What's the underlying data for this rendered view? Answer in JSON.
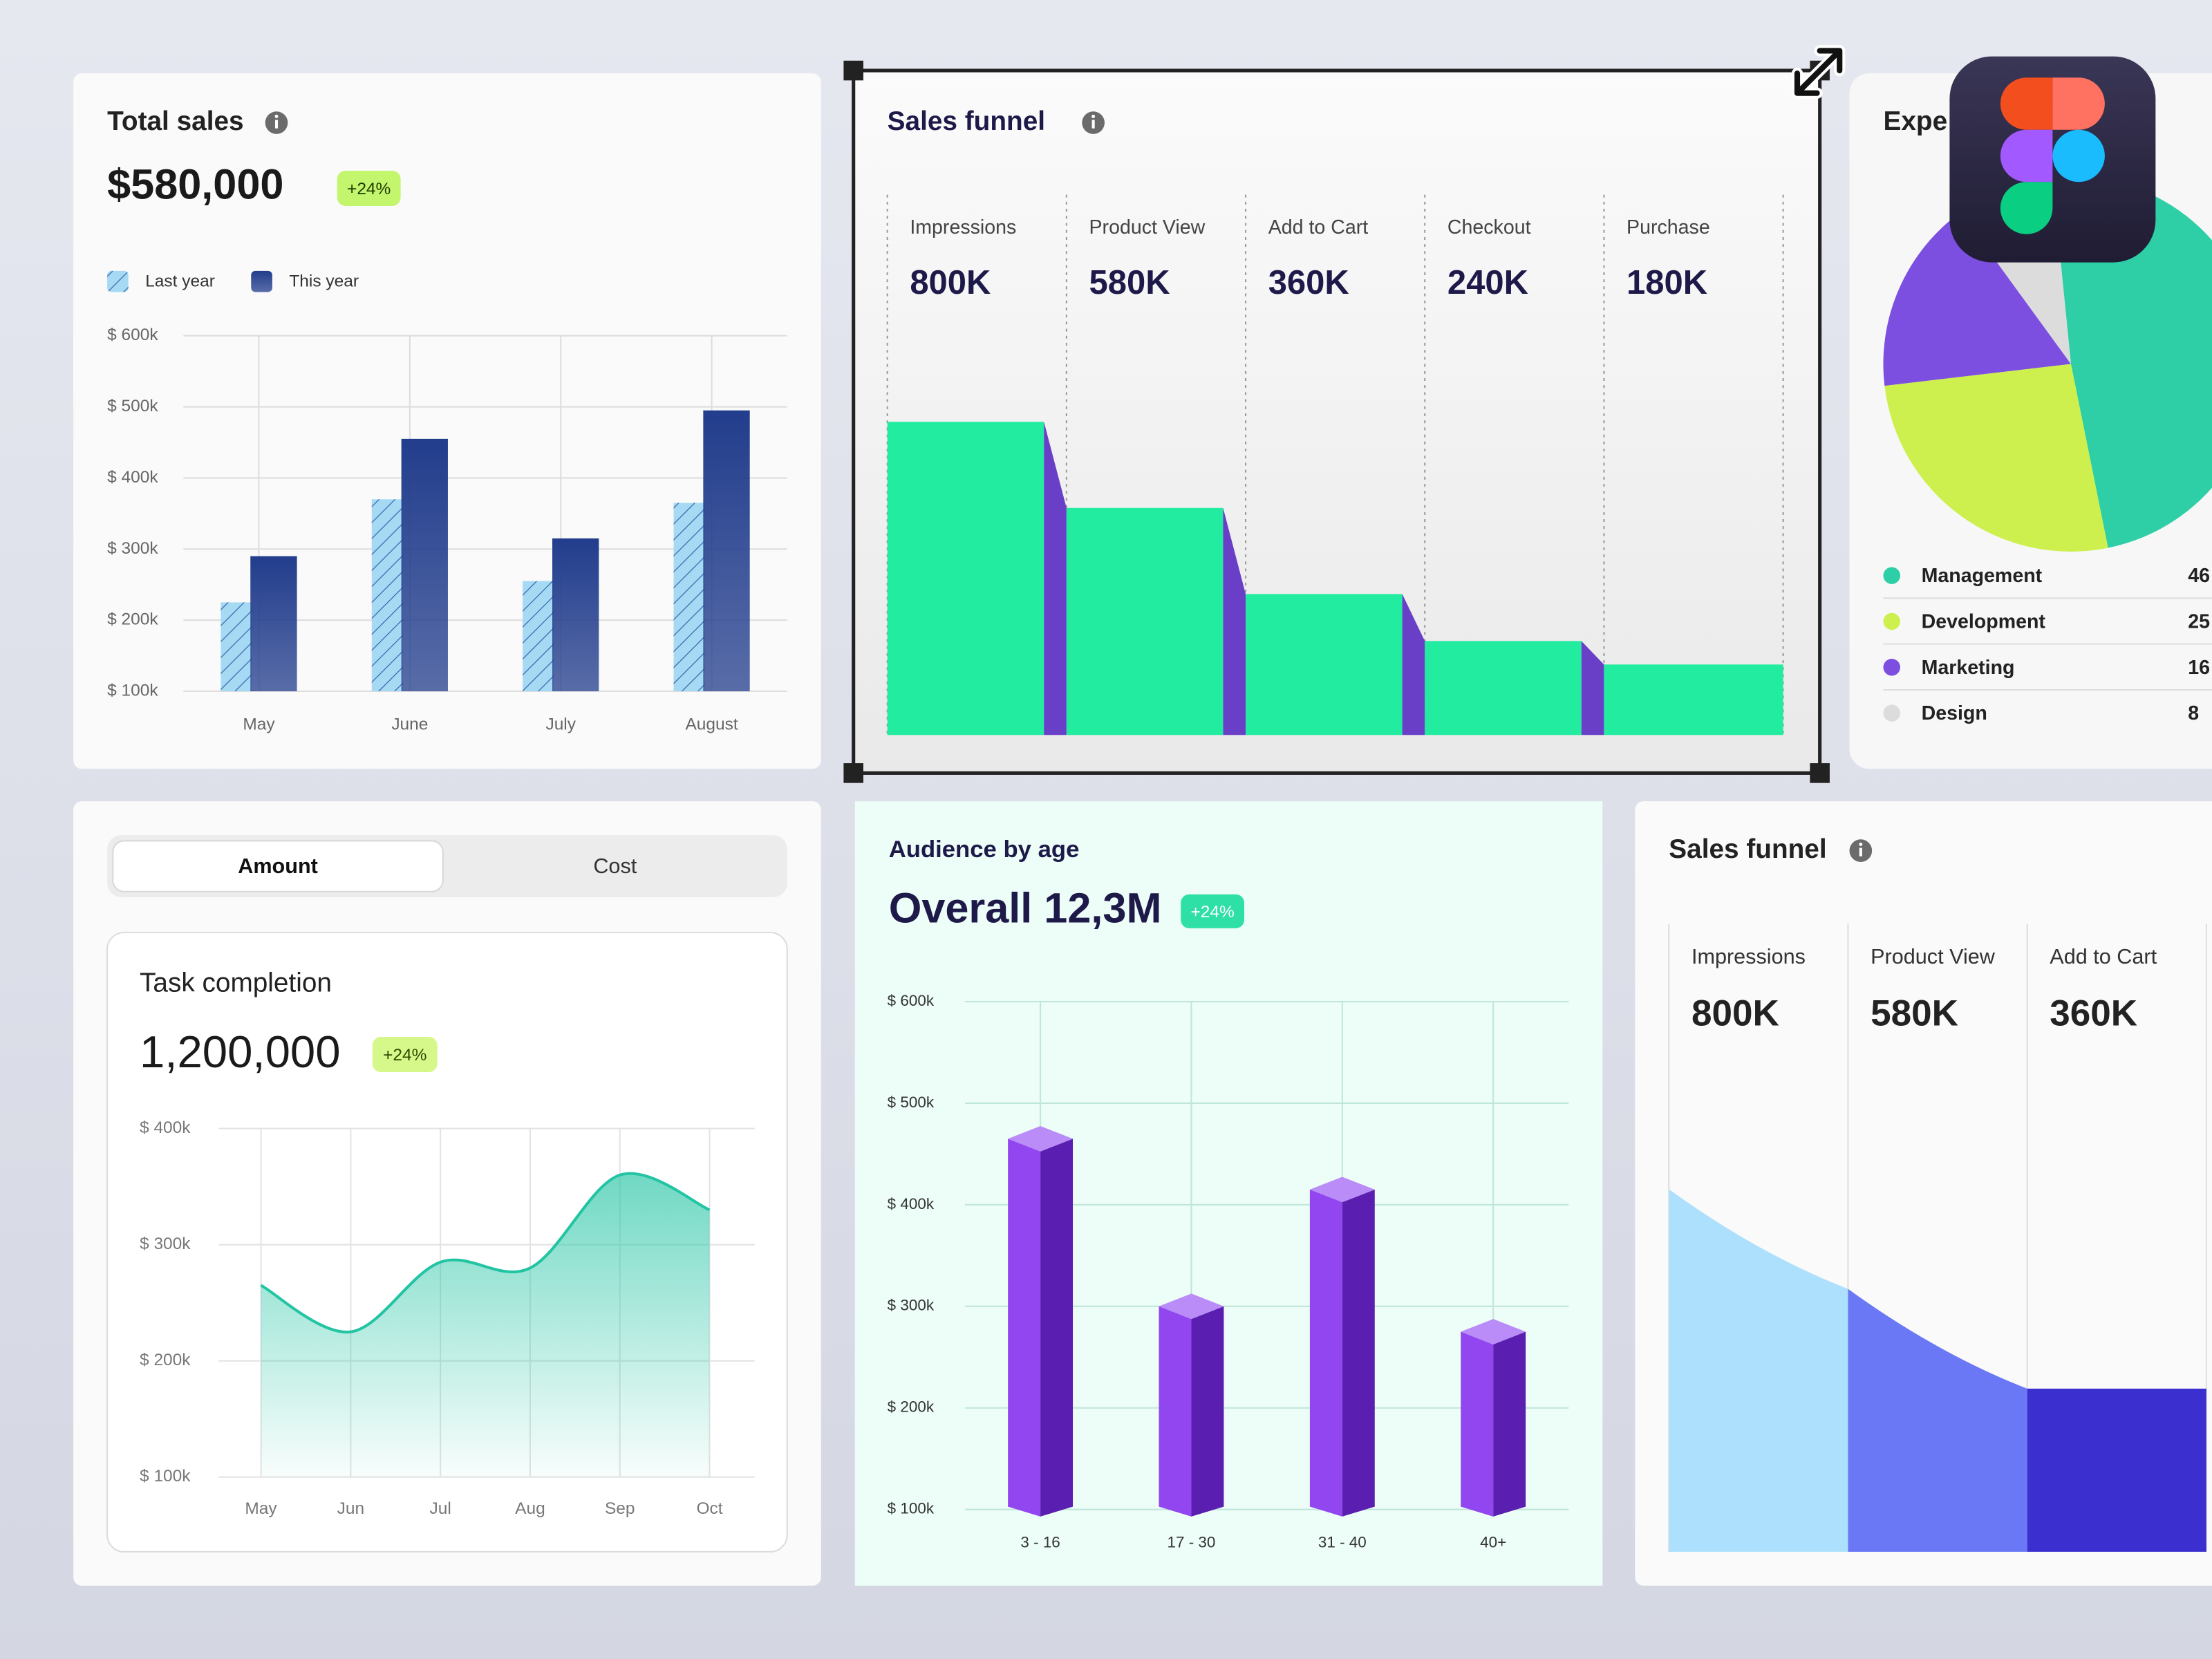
{
  "chart_data": [
    {
      "type": "bar",
      "title": "Total sales",
      "headline": "$580,000",
      "badge": "+24%",
      "categories": [
        "May",
        "June",
        "July",
        "August"
      ],
      "series": [
        {
          "name": "Last year",
          "color": "#a6daf4",
          "values": [
            225,
            370,
            255,
            365
          ]
        },
        {
          "name": "This year",
          "color": "#223d8c",
          "values": [
            290,
            455,
            315,
            495
          ]
        }
      ],
      "ylim": [
        100,
        600
      ],
      "yticks": [
        {
          "value": 100,
          "label": "$ 100k"
        },
        {
          "value": 200,
          "label": "$ 200k"
        },
        {
          "value": 300,
          "label": "$ 300k"
        },
        {
          "value": 400,
          "label": "$ 400k"
        },
        {
          "value": 500,
          "label": "$ 500k"
        },
        {
          "value": 600,
          "label": "$ 600k"
        }
      ],
      "grid": true
    },
    {
      "type": "funnel",
      "title": "Sales funnel",
      "categories": [
        "Impressions",
        "Product View",
        "Add to Cart",
        "Checkout",
        "Purchase"
      ],
      "values": [
        800000,
        580000,
        360000,
        240000,
        180000
      ],
      "value_labels": [
        "800K",
        "580K",
        "360K",
        "240K",
        "180K"
      ],
      "color": "#22eca0",
      "side_color": "#6a3fc8"
    },
    {
      "type": "pie",
      "title": "Expe",
      "categories": [
        "Management",
        "Development",
        "Marketing",
        "Design"
      ],
      "values": [
        46,
        25,
        16,
        8
      ],
      "colors": [
        "#2ecfa6",
        "#cdf04f",
        "#7c4fe0",
        "#dcdcdc"
      ]
    },
    {
      "type": "area",
      "tabs": [
        "Amount",
        "Cost"
      ],
      "title": "Task completion",
      "headline": "1,200,000",
      "badge": "+24%",
      "categories": [
        "May",
        "Jun",
        "Jul",
        "Aug",
        "Sep",
        "Oct"
      ],
      "values": [
        265,
        225,
        285,
        280,
        360,
        330
      ],
      "color": "#22c4a3",
      "ylim": [
        100,
        400
      ],
      "yticks": [
        {
          "value": 100,
          "label": "$ 100k"
        },
        {
          "value": 200,
          "label": "$ 200k"
        },
        {
          "value": 300,
          "label": "$ 300k"
        },
        {
          "value": 400,
          "label": "$ 400k"
        }
      ],
      "grid": true
    },
    {
      "type": "bar3d",
      "title": "Audience by age",
      "headline": "Overall 12,3M",
      "badge": "+24%",
      "categories": [
        "3 - 16",
        "17 - 30",
        "31 - 40",
        "40+"
      ],
      "values": [
        465,
        300,
        415,
        275
      ],
      "color": "#9146f0",
      "side_color": "#5a1fb0",
      "top_color": "#b98cf7",
      "ylim": [
        100,
        600
      ],
      "yticks": [
        {
          "value": 100,
          "label": "$ 100k"
        },
        {
          "value": 200,
          "label": "$ 200k"
        },
        {
          "value": 300,
          "label": "$ 300k"
        },
        {
          "value": 400,
          "label": "$ 400k"
        },
        {
          "value": 500,
          "label": "$ 500k"
        },
        {
          "value": 600,
          "label": "$ 600k"
        }
      ],
      "grid": true
    },
    {
      "type": "funnel_area",
      "title": "Sales funnel",
      "categories": [
        "Impressions",
        "Product View",
        "Add to Cart"
      ],
      "values": [
        800000,
        580000,
        360000
      ],
      "value_labels": [
        "800K",
        "580K",
        "360K"
      ],
      "colors": [
        "#ade0fc",
        "#6b78f5",
        "#3b30cf"
      ]
    }
  ]
}
